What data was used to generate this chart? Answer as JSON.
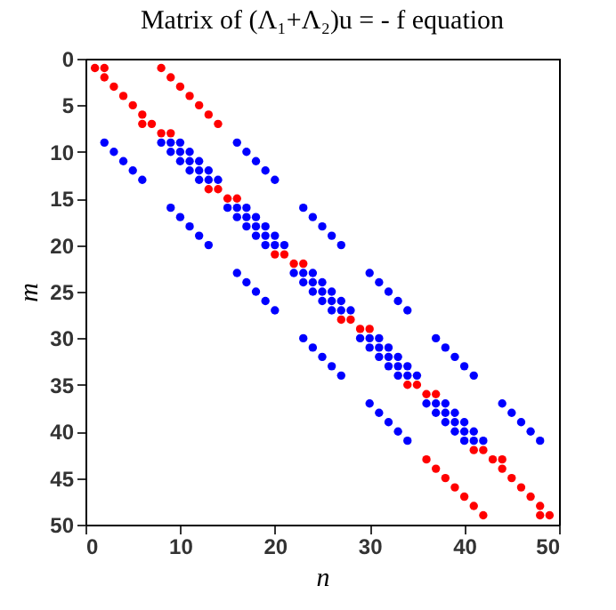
{
  "chart_data": {
    "type": "scatter",
    "title": "Matrix of (Λ₁+Λ₂)u = - f equation",
    "xlabel": "n",
    "ylabel": "m",
    "xlim": [
      0,
      50
    ],
    "xticks": [
      0,
      10,
      20,
      30,
      40,
      50
    ],
    "ylim": [
      50,
      0
    ],
    "yticks": [
      0,
      5,
      10,
      15,
      20,
      25,
      30,
      35,
      40,
      45,
      50
    ],
    "marker": "circle",
    "series": [
      {
        "color": "#ff0000",
        "x": [
          1,
          2,
          8,
          2,
          9,
          3,
          10,
          4,
          11,
          5,
          12,
          6,
          13,
          6,
          7,
          14,
          8,
          9,
          13,
          14,
          15,
          16,
          20,
          21,
          22,
          23,
          27,
          28,
          29,
          30,
          34,
          35,
          36,
          37,
          41,
          42,
          43,
          44,
          36,
          44,
          37,
          45,
          38,
          46,
          39,
          47,
          40,
          48,
          41,
          48,
          49,
          42
        ],
        "values": [
          1,
          1,
          1,
          2,
          2,
          3,
          3,
          4,
          4,
          5,
          5,
          6,
          6,
          7,
          7,
          7,
          8,
          8,
          14,
          14,
          15,
          15,
          21,
          21,
          22,
          22,
          28,
          28,
          29,
          29,
          35,
          35,
          36,
          36,
          42,
          42,
          43,
          43,
          43,
          44,
          44,
          45,
          45,
          46,
          46,
          47,
          47,
          48,
          48,
          49,
          49,
          49
        ]
      },
      {
        "color": "#0000ff",
        "x": [
          2,
          8,
          9,
          10,
          16,
          3,
          9,
          10,
          11,
          17,
          4,
          10,
          11,
          12,
          18,
          5,
          11,
          12,
          13,
          19,
          6,
          12,
          13,
          14,
          20,
          9,
          15,
          16,
          17,
          23,
          10,
          16,
          17,
          18,
          24,
          11,
          17,
          18,
          19,
          25,
          12,
          18,
          19,
          20,
          26,
          13,
          19,
          20,
          21,
          27,
          16,
          22,
          23,
          24,
          30,
          17,
          23,
          24,
          25,
          31,
          18,
          24,
          25,
          26,
          32,
          19,
          25,
          26,
          27,
          33,
          20,
          26,
          27,
          28,
          34,
          23,
          29,
          30,
          31,
          37,
          24,
          30,
          31,
          32,
          38,
          25,
          31,
          32,
          33,
          39,
          26,
          32,
          33,
          34,
          40,
          27,
          33,
          34,
          35,
          41,
          30,
          36,
          37,
          38,
          44,
          31,
          37,
          38,
          39,
          45,
          32,
          38,
          39,
          40,
          46,
          33,
          39,
          40,
          41,
          47,
          34,
          40,
          41,
          42,
          48
        ],
        "values": [
          9,
          9,
          9,
          9,
          9,
          10,
          10,
          10,
          10,
          10,
          11,
          11,
          11,
          11,
          11,
          12,
          12,
          12,
          12,
          12,
          13,
          13,
          13,
          13,
          13,
          16,
          16,
          16,
          16,
          16,
          17,
          17,
          17,
          17,
          17,
          18,
          18,
          18,
          18,
          18,
          19,
          19,
          19,
          19,
          19,
          20,
          20,
          20,
          20,
          20,
          23,
          23,
          23,
          23,
          23,
          24,
          24,
          24,
          24,
          24,
          25,
          25,
          25,
          25,
          25,
          26,
          26,
          26,
          26,
          26,
          27,
          27,
          27,
          27,
          27,
          30,
          30,
          30,
          30,
          30,
          31,
          31,
          31,
          31,
          31,
          32,
          32,
          32,
          32,
          32,
          33,
          33,
          33,
          33,
          33,
          34,
          34,
          34,
          34,
          34,
          37,
          37,
          37,
          37,
          37,
          38,
          38,
          38,
          38,
          38,
          39,
          39,
          39,
          39,
          39,
          40,
          40,
          40,
          40,
          40,
          41,
          41,
          41,
          41,
          41
        ]
      }
    ]
  }
}
